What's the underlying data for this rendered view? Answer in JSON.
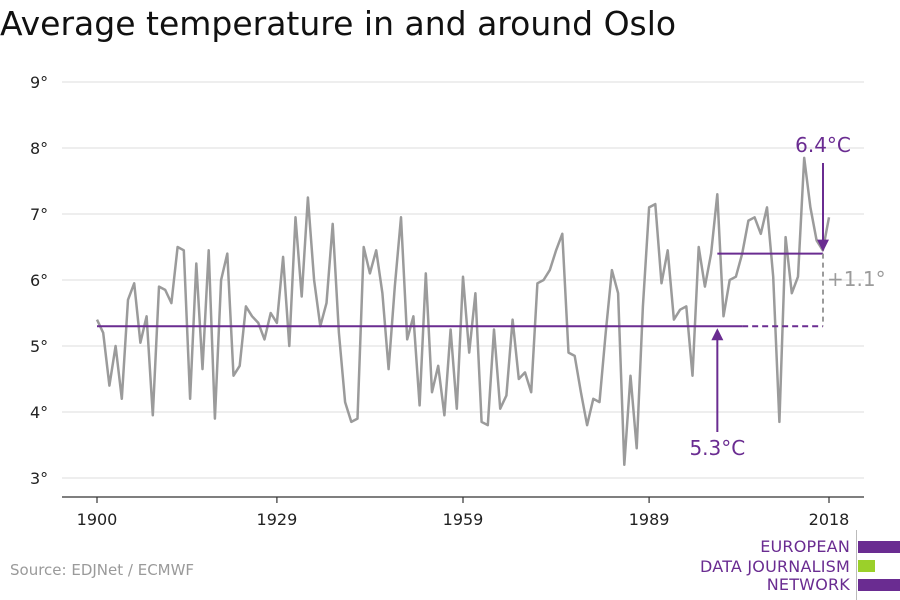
{
  "title": "Average temperature in and around Oslo",
  "source": "Source: EDJNet / ECMWF",
  "logo": {
    "lines": [
      "EUROPEAN",
      "DATA JOURNALISM",
      "NETWORK"
    ],
    "colors": {
      "purple": "#6a2c91",
      "green": "#9bd02a"
    }
  },
  "colors": {
    "series": "#9b9b9b",
    "accent": "#6a2c91",
    "delta": "#9b9b9b",
    "grid": "#dddddd"
  },
  "chart_data": {
    "type": "line",
    "title": "Average temperature in and around Oslo",
    "xlabel": "",
    "ylabel": "",
    "xlim": [
      1900,
      2018
    ],
    "ylim": [
      3,
      9
    ],
    "x_ticks": [
      "1900",
      "1929",
      "1959",
      "1989",
      "2018"
    ],
    "y_ticks": [
      "3°",
      "4°",
      "5°",
      "6°",
      "7°",
      "8°",
      "9°"
    ],
    "grid": "horizontal",
    "series": [
      {
        "x": [
          1900,
          1901,
          1902,
          1903,
          1904,
          1905,
          1906,
          1907,
          1908,
          1909,
          1910,
          1911,
          1912,
          1913,
          1914,
          1915,
          1916,
          1917,
          1918,
          1919,
          1920,
          1921,
          1922,
          1923,
          1924,
          1925,
          1926,
          1927,
          1928,
          1929,
          1930,
          1931,
          1932,
          1933,
          1934,
          1935,
          1936,
          1937,
          1938,
          1939,
          1940,
          1941,
          1942,
          1943,
          1944,
          1945,
          1946,
          1947,
          1948,
          1949,
          1950,
          1951,
          1952,
          1953,
          1954,
          1955,
          1956,
          1957,
          1958,
          1959,
          1960,
          1961,
          1962,
          1963,
          1964,
          1965,
          1966,
          1967,
          1968,
          1969,
          1970,
          1971,
          1972,
          1973,
          1974,
          1975,
          1976,
          1977,
          1978,
          1979,
          1980,
          1981,
          1982,
          1983,
          1984,
          1985,
          1986,
          1987,
          1988,
          1989,
          1990,
          1991,
          1992,
          1993,
          1994,
          1995,
          1996,
          1997,
          1998,
          1999,
          2000,
          2001,
          2002,
          2003,
          2004,
          2005,
          2006,
          2007,
          2008,
          2009,
          2010,
          2011,
          2012,
          2013,
          2014,
          2015,
          2016,
          2017,
          2018
        ],
        "values": [
          5.4,
          5.2,
          4.4,
          5.0,
          4.2,
          5.7,
          5.95,
          5.05,
          5.45,
          3.95,
          5.9,
          5.85,
          5.65,
          6.5,
          6.45,
          4.2,
          6.25,
          4.65,
          6.45,
          3.9,
          6.0,
          6.4,
          4.55,
          4.7,
          5.6,
          5.45,
          5.35,
          5.1,
          5.5,
          5.35,
          6.35,
          5.0,
          6.95,
          5.75,
          7.25,
          6.0,
          5.3,
          5.65,
          6.85,
          5.2,
          4.15,
          3.85,
          3.9,
          6.5,
          6.1,
          6.45,
          5.8,
          4.65,
          5.9,
          6.95,
          5.1,
          5.45,
          4.1,
          6.1,
          4.3,
          4.7,
          3.95,
          5.25,
          4.05,
          6.05,
          4.9,
          5.8,
          3.85,
          3.8,
          5.25,
          4.05,
          4.25,
          5.4,
          4.5,
          4.6,
          4.3,
          5.95,
          6.0,
          6.15,
          6.45,
          6.7,
          4.9,
          4.85,
          4.3,
          3.8,
          4.2,
          4.15,
          5.2,
          6.15,
          5.8,
          3.2,
          4.55,
          3.45,
          5.6,
          7.1,
          7.15,
          5.95,
          6.45,
          5.4,
          5.55,
          5.6,
          4.55,
          6.5,
          5.9,
          6.4,
          7.3,
          5.45,
          6.0,
          6.05,
          6.4,
          6.9,
          6.95,
          6.7,
          7.1,
          6.05,
          3.85,
          6.65,
          5.8,
          6.05,
          7.85,
          7.1,
          6.6,
          6.45,
          6.95
        ]
      }
    ],
    "annotations": {
      "baseline": {
        "value": 5.3,
        "label": "5.3°C",
        "from_x": 1900,
        "to_x": 2018
      },
      "recent": {
        "value": 6.4,
        "label": "6.4°C",
        "from_x": 2000,
        "to_x": 2018
      },
      "delta": {
        "label": "+1.1°"
      }
    }
  }
}
